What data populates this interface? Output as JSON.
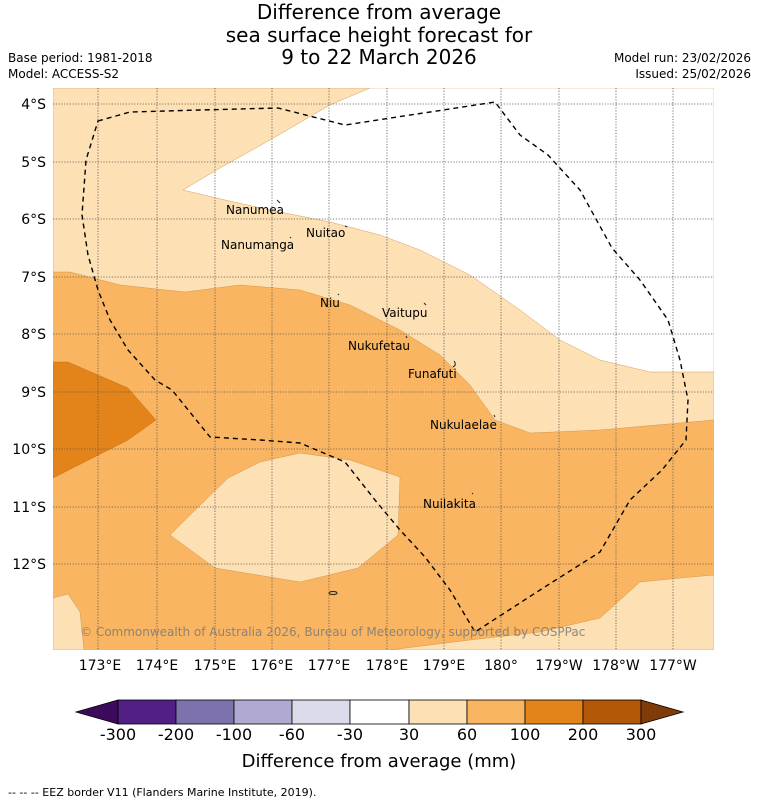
{
  "title": {
    "line1": "Difference from average",
    "line2": "sea surface height forecast for",
    "line3": "9 to 22 March 2026"
  },
  "meta": {
    "base_period": "Base period: 1981-2018",
    "model": "Model: ACCESS-S2",
    "model_run": "Model run: 23/02/2026",
    "issued": "Issued: 25/02/2026"
  },
  "map": {
    "lat_labels": [
      "4°S",
      "5°S",
      "6°S",
      "7°S",
      "8°S",
      "9°S",
      "10°S",
      "11°S",
      "12°S"
    ],
    "lon_labels": [
      "173°E",
      "174°E",
      "175°E",
      "176°E",
      "177°E",
      "178°E",
      "179°E",
      "180°",
      "179°W",
      "178°W",
      "177°W"
    ],
    "places": [
      "Nanumea",
      "Nuitao",
      "Nanumanga",
      "Niu",
      "Vaitupu",
      "Nukufetau",
      "Funafuti",
      "Nukulaelae",
      "Nuilakita"
    ],
    "copyright": "© Commonwealth of Australia 2026, Bureau of Meteorology, supported by COSPPac"
  },
  "colorbar": {
    "labels": [
      "-300",
      "-200",
      "-100",
      "-60",
      "-30",
      "30",
      "60",
      "100",
      "200",
      "300"
    ],
    "colors": [
      "#3d0b5b",
      "#512085",
      "#7e72ad",
      "#b0a9d1",
      "#dbdbeb",
      "#ffffff",
      "#fde0b3",
      "#f9b561",
      "#e28419",
      "#b25706",
      "#7f3b08"
    ],
    "title": "Difference from average (mm)"
  },
  "footer": "--  --  -- EEZ border V11 (Flanders Marine Institute, 2019)."
}
